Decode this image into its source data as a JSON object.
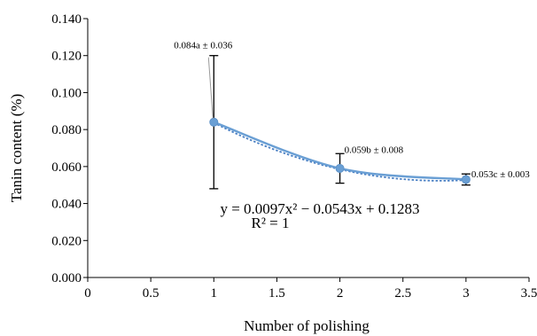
{
  "chart_data": {
    "type": "line",
    "xlabel": "Number of polishing",
    "ylabel": "Tanin content (%)",
    "xlim": [
      0,
      3.5
    ],
    "ylim": [
      0,
      0.14
    ],
    "x_ticks": [
      "0",
      "0.5",
      "1",
      "1.5",
      "2",
      "2.5",
      "3",
      "3.5"
    ],
    "y_ticks": [
      "0.000",
      "0.020",
      "0.040",
      "0.060",
      "0.080",
      "0.100",
      "0.120",
      "0.140"
    ],
    "grid": false,
    "series": [
      {
        "x": [
          1,
          2,
          3
        ],
        "values": [
          0.084,
          0.059,
          0.053
        ],
        "error": [
          0.036,
          0.008,
          0.003
        ],
        "labels": [
          "0.084a ± 0.036",
          "0.059b ± 0.008",
          "0.053c ± 0.003"
        ],
        "color": "#6a9fd4"
      }
    ],
    "trendline": {
      "type": "polynomial",
      "coefficients": [
        0.0097,
        -0.0543,
        0.1283
      ],
      "equation": "y = 0.0097x² − 0.0543x + 0.1283",
      "r_squared": "R² = 1",
      "color": "#4a80c4"
    }
  }
}
